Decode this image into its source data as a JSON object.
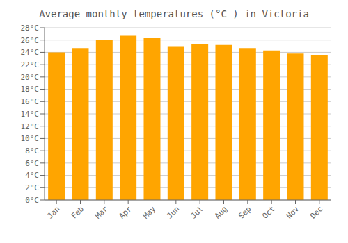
{
  "chart_data": {
    "type": "bar",
    "title": "Average monthly temperatures (°C ) in Victoria",
    "categories": [
      "Jan",
      "Feb",
      "Mar",
      "Apr",
      "May",
      "Jun",
      "Jul",
      "Aug",
      "Sep",
      "Oct",
      "Nov",
      "Dec"
    ],
    "values": [
      24.0,
      24.7,
      26.0,
      26.7,
      26.3,
      25.0,
      25.3,
      25.2,
      24.7,
      24.3,
      23.8,
      23.6
    ],
    "color": "#FFA500",
    "ylim": [
      0,
      28
    ],
    "yticks": [
      {
        "value": 0,
        "label": "0°C"
      },
      {
        "value": 2,
        "label": "2°C"
      },
      {
        "value": 4,
        "label": "4°C"
      },
      {
        "value": 6,
        "label": "6°C"
      },
      {
        "value": 8,
        "label": "8°C"
      },
      {
        "value": 10,
        "label": "10°C"
      },
      {
        "value": 12,
        "label": "12°C"
      },
      {
        "value": 14,
        "label": "14°C"
      },
      {
        "value": 16,
        "label": "16°C"
      },
      {
        "value": 18,
        "label": "18°C"
      },
      {
        "value": 20,
        "label": "20°C"
      },
      {
        "value": 22,
        "label": "22°C"
      },
      {
        "value": 24,
        "label": "24°C"
      },
      {
        "value": 26,
        "label": "26°C"
      },
      {
        "value": 28,
        "label": "28°C"
      }
    ],
    "grid": true
  }
}
